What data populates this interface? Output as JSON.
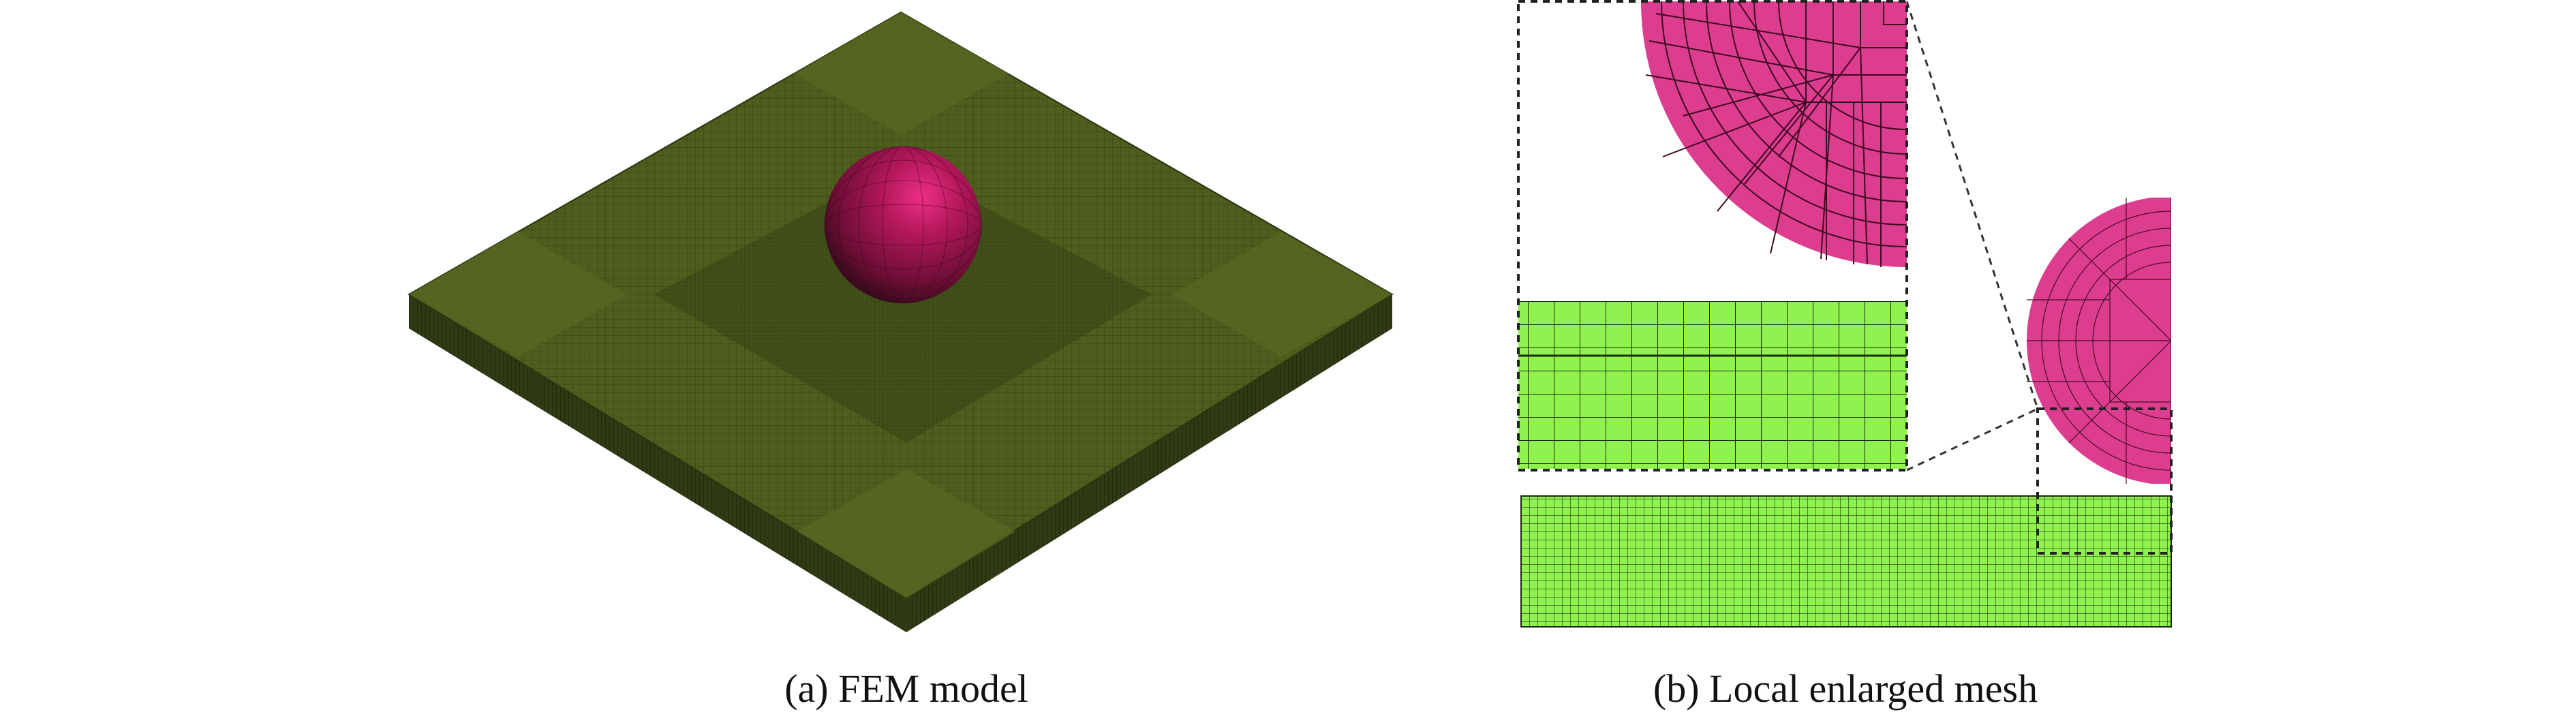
{
  "figure": {
    "panel_a": {
      "caption": "(a) FEM model"
    },
    "panel_b": {
      "caption": "(b) Local enlarged mesh"
    }
  },
  "colors": {
    "plate_top": "#4a5a1c",
    "plate_side": "#2e3a14",
    "sphere": "#b0185a",
    "mesh_pink": "#dd3d8f",
    "mesh_green": "#8ff24f",
    "mesh_line": "#1a1a1a"
  }
}
